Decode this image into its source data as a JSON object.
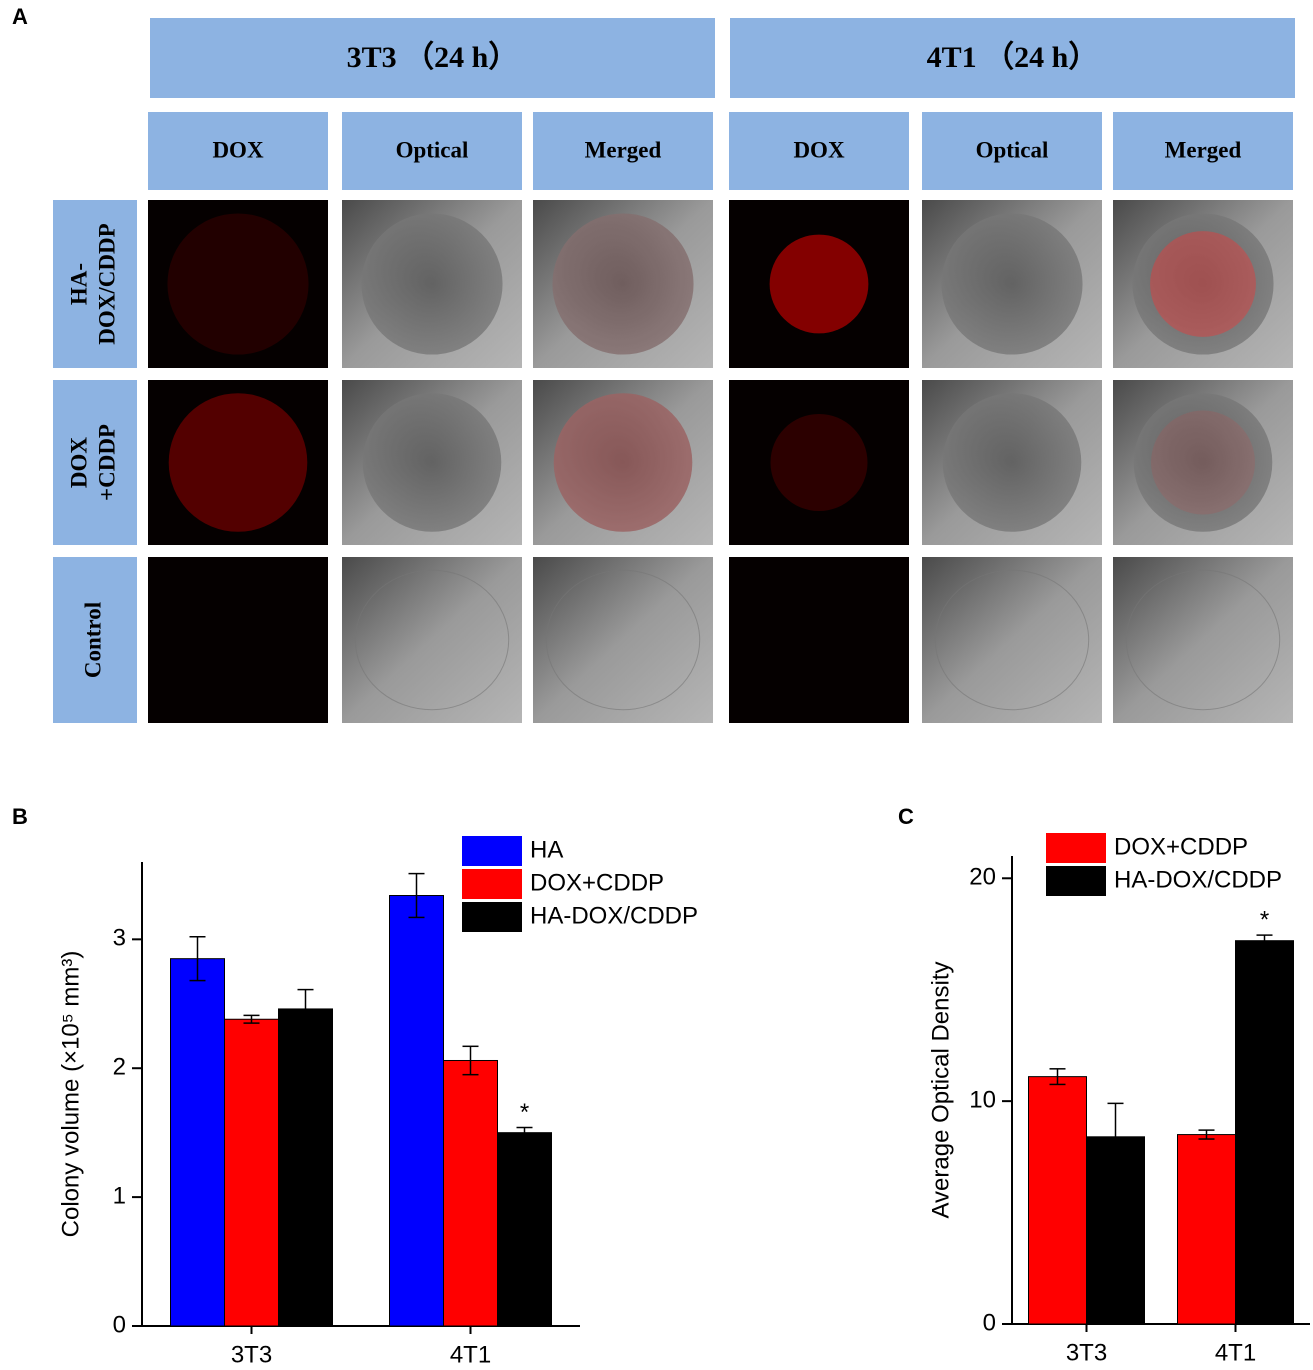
{
  "panel_labels": [
    "A",
    "B",
    "C"
  ],
  "panel_a": {
    "groups": [
      "3T3 （24 h）",
      "4T1 （24 h）"
    ],
    "columns": [
      "DOX",
      "Optical",
      "Merged",
      "DOX",
      "Optical",
      "Merged"
    ],
    "rows": [
      [
        "HA-",
        "DOX/CDDP"
      ],
      [
        "DOX",
        "+CDDP"
      ],
      [
        "Control"
      ]
    ]
  },
  "chart_data": [
    {
      "type": "bar",
      "ylabel": "Colony volume (×10⁵ mm³)",
      "categories": [
        "3T3",
        "4T1"
      ],
      "series": [
        {
          "name": "HA",
          "color": "#0000ff",
          "values": [
            2.85,
            3.34
          ],
          "errors": [
            0.17,
            0.17
          ]
        },
        {
          "name": "DOX+CDDP",
          "color": "#ff0000",
          "values": [
            2.38,
            2.06
          ],
          "errors": [
            0.03,
            0.11
          ]
        },
        {
          "name": "HA-DOX/CDDP",
          "color": "#000000",
          "values": [
            2.46,
            1.5
          ],
          "errors": [
            0.15,
            0.04
          ]
        }
      ],
      "ylim": [
        0,
        3.6
      ],
      "yticks": [
        0,
        1,
        2,
        3
      ],
      "annotations": [
        {
          "text": "*",
          "category": 1,
          "series": 2
        }
      ]
    },
    {
      "type": "bar",
      "ylabel": "Average Optical Density",
      "categories": [
        "3T3",
        "4T1"
      ],
      "series": [
        {
          "name": "DOX+CDDP",
          "color": "#ff0000",
          "values": [
            11.1,
            8.5
          ],
          "errors": [
            0.35,
            0.2
          ]
        },
        {
          "name": "HA-DOX/CDDP",
          "color": "#000000",
          "values": [
            8.4,
            17.2
          ],
          "errors": [
            1.5,
            0.25
          ]
        }
      ],
      "ylim": [
        0,
        21
      ],
      "yticks": [
        0,
        10,
        20
      ],
      "annotations": [
        {
          "text": "*",
          "category": 1,
          "series": 1
        }
      ]
    }
  ]
}
